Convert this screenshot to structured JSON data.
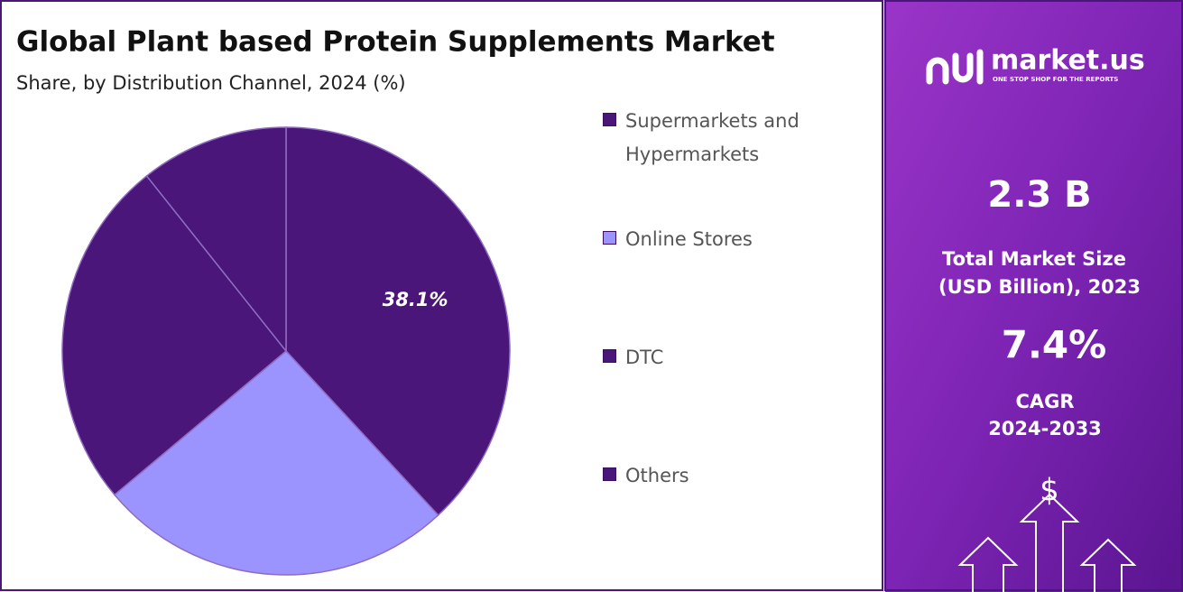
{
  "chart_data": {
    "type": "pie",
    "title": "Global Plant based Protein Supplements Market",
    "subtitle": "Share, by Distribution Channel, 2024 (%)",
    "categories": [
      "Supermarkets and Hypermarkets",
      "Online Stores",
      "DTC",
      "Others"
    ],
    "values": [
      38.1,
      25.8,
      25.4,
      10.7
    ],
    "value_labels": [
      "38.1%",
      null,
      null,
      null
    ],
    "colors": [
      "#4a167a",
      "#9b94ff",
      "#4a167a",
      "#4a167a"
    ],
    "legend": "right"
  },
  "side_panel": {
    "logo": "market.us",
    "tagline": "ONE STOP SHOP FOR THE REPORTS",
    "stats": [
      {
        "value": "2.3 B",
        "label_lines": [
          "Total Market Size",
          "(USD Billion), 2023"
        ]
      },
      {
        "value": "7.4%",
        "label_lines": [
          "CAGR",
          "2024-2033"
        ]
      }
    ],
    "icon_symbol": "$"
  }
}
